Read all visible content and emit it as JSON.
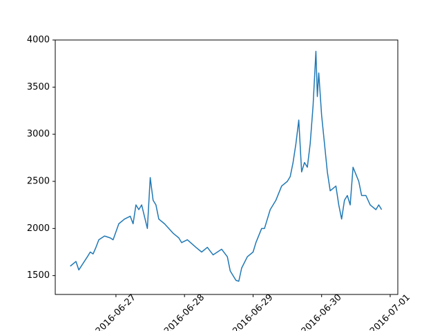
{
  "chart_data": {
    "type": "line",
    "x": [
      "2016-06-26 08:00",
      "2016-06-26 10:00",
      "2016-06-26 11:00",
      "2016-06-26 14:00",
      "2016-06-26 15:00",
      "2016-06-26 16:00",
      "2016-06-26 17:00",
      "2016-06-26 18:00",
      "2016-06-26 20:00",
      "2016-06-26 22:00",
      "2016-06-26 23:00",
      "2016-06-27 01:00",
      "2016-06-27 03:00",
      "2016-06-27 05:00",
      "2016-06-27 06:00",
      "2016-06-27 07:00",
      "2016-06-27 08:00",
      "2016-06-27 09:00",
      "2016-06-27 11:00",
      "2016-06-27 12:00",
      "2016-06-27 13:00",
      "2016-06-27 14:00",
      "2016-06-27 15:00",
      "2016-06-27 17:00",
      "2016-06-27 20:00",
      "2016-06-27 22:00",
      "2016-06-27 23:00",
      "2016-06-28 01:00",
      "2016-06-28 04:00",
      "2016-06-28 06:00",
      "2016-06-28 08:00",
      "2016-06-28 10:00",
      "2016-06-28 13:00",
      "2016-06-28 15:00",
      "2016-06-28 16:00",
      "2016-06-28 18:00",
      "2016-06-28 19:00",
      "2016-06-28 20:00",
      "2016-06-28 22:00",
      "2016-06-29 00:00",
      "2016-06-29 01:00",
      "2016-06-29 03:00",
      "2016-06-29 04:00",
      "2016-06-29 06:00",
      "2016-06-29 08:00",
      "2016-06-29 10:00",
      "2016-06-29 12:00",
      "2016-06-29 13:00",
      "2016-06-29 14:00",
      "2016-06-29 15:00",
      "2016-06-29 16:00",
      "2016-06-29 17:00",
      "2016-06-29 18:00",
      "2016-06-29 19:00",
      "2016-06-29 20:00",
      "2016-06-29 21:00",
      "2016-06-29 22:00",
      "2016-06-29 22:30",
      "2016-06-29 23:00",
      "2016-06-30 00:00",
      "2016-06-30 01:00",
      "2016-06-30 02:00",
      "2016-06-30 03:00",
      "2016-06-30 05:00",
      "2016-06-30 06:00",
      "2016-06-30 07:00",
      "2016-06-30 08:00",
      "2016-06-30 09:00",
      "2016-06-30 10:00",
      "2016-06-30 11:00",
      "2016-06-30 13:00",
      "2016-06-30 14:00",
      "2016-06-30 15:30",
      "2016-06-30 17:00",
      "2016-06-30 19:00",
      "2016-06-30 20:00",
      "2016-06-30 21:00"
    ],
    "series": [
      {
        "color": "#1f77b4",
        "values": [
          1600,
          1650,
          1560,
          1700,
          1750,
          1730,
          1800,
          1880,
          1920,
          1900,
          1880,
          2050,
          2100,
          2130,
          2050,
          2250,
          2200,
          2250,
          2000,
          2540,
          2300,
          2250,
          2100,
          2050,
          1950,
          1900,
          1850,
          1880,
          1800,
          1750,
          1800,
          1720,
          1780,
          1700,
          1550,
          1450,
          1440,
          1580,
          1700,
          1750,
          1850,
          2000,
          2000,
          2200,
          2300,
          2450,
          2500,
          2550,
          2700,
          2900,
          3150,
          2600,
          2700,
          2650,
          2900,
          3300,
          3880,
          3400,
          3650,
          3200,
          2900,
          2600,
          2400,
          2450,
          2250,
          2100,
          2300,
          2350,
          2250,
          2650,
          2500,
          2350,
          2350,
          2250,
          2200,
          2250,
          2200
        ]
      }
    ],
    "xlim": [
      "2016-06-26 02:45",
      "2016-07-01 02:40"
    ],
    "xticks": [
      "2016-06-27",
      "2016-06-28",
      "2016-06-29",
      "2016-06-30",
      "2016-07-01"
    ],
    "ylim": [
      1300,
      4000
    ],
    "yticks": [
      1500,
      2000,
      2500,
      3000,
      3500,
      4000
    ]
  }
}
